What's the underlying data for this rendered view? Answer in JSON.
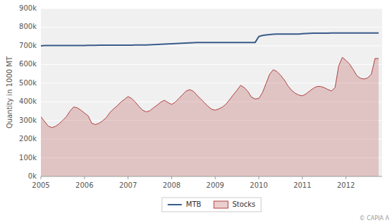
{
  "chart_data": {
    "type": "line",
    "y_label": "Quantity in 1000 MT",
    "annotations": [
      "© CAPIA A"
    ],
    "grid": true,
    "legend": "bottom",
    "xlim": [
      2005.0,
      2012.83
    ],
    "xticks": [
      2005,
      2006,
      2007,
      2008,
      2009,
      2010,
      2011,
      2012
    ],
    "ylim": [
      0,
      900000
    ],
    "yticks": [
      {
        "value": 0,
        "label": "0k"
      },
      {
        "value": 100000,
        "label": "100k"
      },
      {
        "value": 200000,
        "label": "200k"
      },
      {
        "value": 300000,
        "label": "300k"
      },
      {
        "value": 400000,
        "label": "400k"
      },
      {
        "value": 500000,
        "label": "500k"
      },
      {
        "value": 600000,
        "label": "600k"
      },
      {
        "value": 700000,
        "label": "700k"
      },
      {
        "value": 800000,
        "label": "800k"
      },
      {
        "value": 900000,
        "label": "900k"
      }
    ],
    "x": [
      2005.0,
      2005.083,
      2005.167,
      2005.25,
      2005.333,
      2005.417,
      2005.5,
      2005.583,
      2005.667,
      2005.75,
      2005.833,
      2005.917,
      2006.0,
      2006.083,
      2006.167,
      2006.25,
      2006.333,
      2006.417,
      2006.5,
      2006.583,
      2006.667,
      2006.75,
      2006.833,
      2006.917,
      2007.0,
      2007.083,
      2007.167,
      2007.25,
      2007.333,
      2007.417,
      2007.5,
      2007.583,
      2007.667,
      2007.75,
      2007.833,
      2007.917,
      2008.0,
      2008.083,
      2008.167,
      2008.25,
      2008.333,
      2008.417,
      2008.5,
      2008.583,
      2008.667,
      2008.75,
      2008.833,
      2008.917,
      2009.0,
      2009.083,
      2009.167,
      2009.25,
      2009.333,
      2009.417,
      2009.5,
      2009.583,
      2009.667,
      2009.75,
      2009.833,
      2009.917,
      2010.0,
      2010.083,
      2010.167,
      2010.25,
      2010.333,
      2010.417,
      2010.5,
      2010.583,
      2010.667,
      2010.75,
      2010.833,
      2010.917,
      2011.0,
      2011.083,
      2011.167,
      2011.25,
      2011.333,
      2011.417,
      2011.5,
      2011.583,
      2011.667,
      2011.75,
      2011.833,
      2011.917,
      2012.0,
      2012.083,
      2012.167,
      2012.25,
      2012.333,
      2012.417,
      2012.5,
      2012.583,
      2012.667,
      2012.75
    ],
    "series": [
      {
        "name": "MTB",
        "type": "line",
        "color": "#3a5a8a",
        "values": [
          700000,
          701000,
          701000,
          701000,
          701000,
          701000,
          701000,
          701000,
          701000,
          701000,
          701000,
          701000,
          701000,
          702000,
          702000,
          702000,
          703000,
          703000,
          703000,
          703000,
          703000,
          703000,
          703000,
          703000,
          703000,
          703000,
          704000,
          704000,
          704000,
          704000,
          705000,
          706000,
          707000,
          708000,
          709000,
          710000,
          711000,
          712000,
          713000,
          714000,
          715000,
          716000,
          717000,
          718000,
          718000,
          718000,
          718000,
          718000,
          718000,
          718000,
          718000,
          718000,
          718000,
          718000,
          718000,
          718000,
          718000,
          718000,
          718000,
          718000,
          750000,
          755000,
          758000,
          760000,
          762000,
          763000,
          763000,
          763000,
          763000,
          763000,
          763000,
          763000,
          765000,
          766000,
          767000,
          768000,
          768000,
          768000,
          768000,
          768000,
          769000,
          769000,
          769000,
          769000,
          769000,
          769000,
          769000,
          769000,
          769000,
          769000,
          769000,
          769000,
          769000,
          769000
        ]
      },
      {
        "name": "Stocks",
        "type": "area",
        "color": "#b04040",
        "values": [
          320000,
          295000,
          270000,
          262000,
          268000,
          282000,
          300000,
          320000,
          350000,
          372000,
          368000,
          355000,
          340000,
          325000,
          285000,
          278000,
          285000,
          298000,
          315000,
          342000,
          362000,
          378000,
          398000,
          413000,
          428000,
          418000,
          398000,
          375000,
          355000,
          346000,
          352000,
          368000,
          382000,
          398000,
          408000,
          396000,
          386000,
          398000,
          418000,
          438000,
          458000,
          465000,
          456000,
          435000,
          415000,
          396000,
          376000,
          360000,
          355000,
          362000,
          372000,
          388000,
          412000,
          438000,
          462000,
          488000,
          476000,
          455000,
          425000,
          415000,
          418000,
          448000,
          498000,
          548000,
          572000,
          562000,
          542000,
          518000,
          486000,
          462000,
          446000,
          436000,
          432000,
          442000,
          458000,
          472000,
          482000,
          482000,
          476000,
          466000,
          458000,
          476000,
          592000,
          638000,
          622000,
          602000,
          572000,
          540000,
          526000,
          522000,
          528000,
          548000,
          632000,
          632000
        ]
      }
    ]
  }
}
